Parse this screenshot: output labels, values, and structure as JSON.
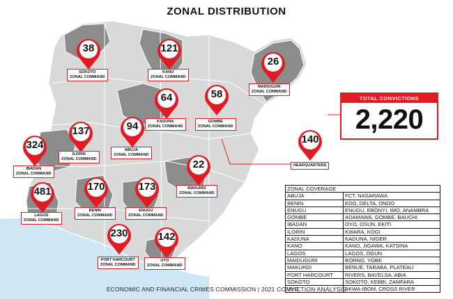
{
  "title": "ZONAL DISTRIBUTION",
  "footer": "ECONOMIC AND FINANCIAL CRIMES COMMISSION | 2021 CONVICTION ANALYSIS",
  "colors": {
    "accent": "#e01b24",
    "state_light": "#d9d9d9",
    "state_dark": "#8c8c8c",
    "sea": "#cfe6f5"
  },
  "total": {
    "label": "TOTAL CONVICTIONS",
    "value": "2,220"
  },
  "zones": [
    {
      "id": "sokoto",
      "value": "38",
      "label_line1": "SOKOTO",
      "label_line2": "ZONAL COMMAND"
    },
    {
      "id": "kano",
      "value": "121",
      "label_line1": "KANO",
      "label_line2": "ZONAL COMMAND"
    },
    {
      "id": "maiduguri",
      "value": "26",
      "label_line1": "MAIDUGURI",
      "label_line2": "ZONAL COMMAND"
    },
    {
      "id": "kaduna",
      "value": "64",
      "label_line1": "KADUNA",
      "label_line2": "ZONAL COMMAND"
    },
    {
      "id": "gombe",
      "value": "58",
      "label_line1": "GOMBE",
      "label_line2": "ZONAL COMMAND"
    },
    {
      "id": "ilorin",
      "value": "137",
      "label_line1": "ILORIN",
      "label_line2": "ZONAL COMMAND"
    },
    {
      "id": "abuja",
      "value": "94",
      "label_line1": "ABUJA",
      "label_line2": "ZONAL COMMAND"
    },
    {
      "id": "ibadan",
      "value": "324",
      "label_line1": "IBADAN",
      "label_line2": "ZONAL COMMAND"
    },
    {
      "id": "headquarters",
      "value": "140",
      "label_line1": "HEADQUARTERS",
      "label_line2": ""
    },
    {
      "id": "makurdi",
      "value": "22",
      "label_line1": "MAKURDI",
      "label_line2": "ZONAL COMMAND"
    },
    {
      "id": "lagos",
      "value": "481",
      "label_line1": "LAGOS",
      "label_line2": "ZONAL COMMAND"
    },
    {
      "id": "benin",
      "value": "170",
      "label_line1": "BENIN",
      "label_line2": "ZONAL COMMAND"
    },
    {
      "id": "enugu",
      "value": "173",
      "label_line1": "ENUGU",
      "label_line2": "ZONAL COMMAND"
    },
    {
      "id": "port_harcourt",
      "value": "230",
      "label_line1": "PORT HARCOURT",
      "label_line2": "ZONAL COMMAND"
    },
    {
      "id": "uyo",
      "value": "142",
      "label_line1": "UYO",
      "label_line2": "ZONAL COMMAND"
    }
  ],
  "coverage": {
    "header": "ZONAL COVERAGE",
    "rows": [
      [
        "ABUJA",
        "FCT, NASARAWA"
      ],
      [
        "BENIN",
        "EDO, DELTA, ONDO"
      ],
      [
        "ENUGU",
        "ENUGU, EBONYI, IMO, ANAMBRA"
      ],
      [
        "GOMBE",
        "ADAMAWA, GOMBE, BAUCHI"
      ],
      [
        "IBADAN",
        "OYO, OSUN, EKITI"
      ],
      [
        "ILORIN",
        "KWARA, KOGI"
      ],
      [
        "KADUNA",
        "KADUNA, NIGER"
      ],
      [
        "KANO",
        "KANO, JIGAWA, KATSINA"
      ],
      [
        "LAGOS",
        "LAGOS, OGUN"
      ],
      [
        "MAIDUGURI",
        "BORNO, YOBE"
      ],
      [
        "MAKURDI",
        "BENUE, TARABA, PLATEAU"
      ],
      [
        "PORT HARCOURT",
        "RIVERS, BAYELSA, ABIA"
      ],
      [
        "SOKOTO",
        "SOKOTO, KEBBI, ZAMFARA"
      ],
      [
        "UYO",
        "AKWA-IBOM, CROSS RIVER"
      ]
    ]
  }
}
